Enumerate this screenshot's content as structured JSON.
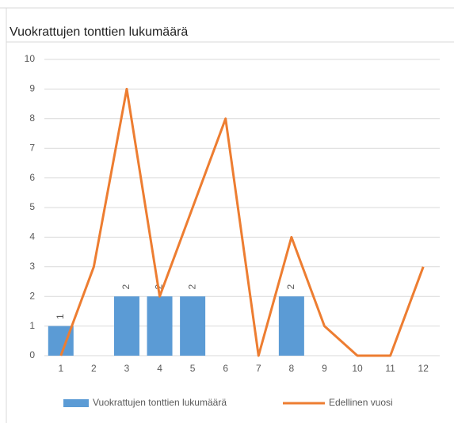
{
  "chart_data": {
    "type": "combo",
    "title": "Vuokrattujen tonttien lukumäärä",
    "categories": [
      "1",
      "2",
      "3",
      "4",
      "5",
      "6",
      "7",
      "8",
      "9",
      "10",
      "11",
      "12"
    ],
    "series": [
      {
        "name": "Vuokrattujen tonttien lukumäärä",
        "type": "bar",
        "color": "#5b9bd5",
        "values": [
          1,
          null,
          2,
          2,
          2,
          null,
          null,
          2,
          null,
          null,
          null,
          null
        ]
      },
      {
        "name": "Edellinen vuosi",
        "type": "line",
        "color": "#ed7d31",
        "values": [
          0,
          3,
          9,
          2,
          5,
          8,
          0,
          4,
          1,
          0,
          0,
          3
        ]
      }
    ],
    "ylim": [
      0,
      10
    ],
    "yticks": [
      0,
      1,
      2,
      3,
      4,
      5,
      6,
      7,
      8,
      9,
      10
    ],
    "grid": true,
    "legend": "bottom"
  }
}
